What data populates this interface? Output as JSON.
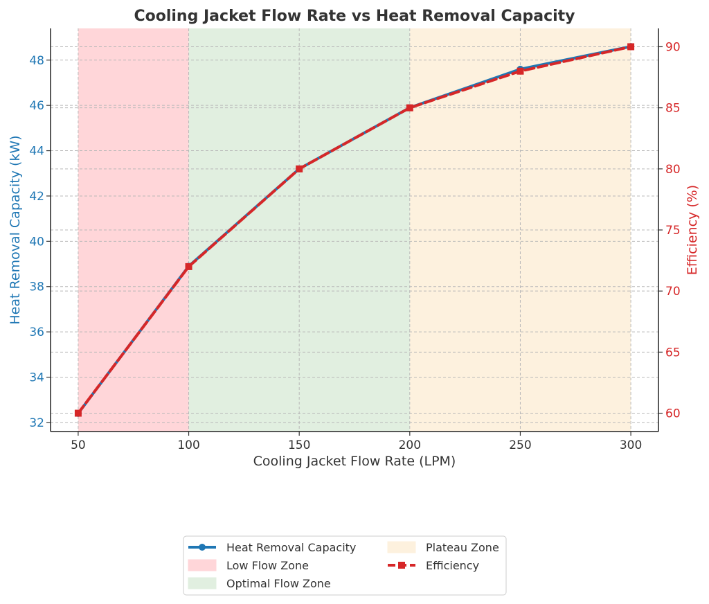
{
  "chart_data": {
    "type": "line",
    "title": "Cooling Jacket Flow Rate vs Heat Removal Capacity",
    "xlabel": "Cooling Jacket Flow Rate (LPM)",
    "ylabel_left": "Heat Removal Capacity (kW)",
    "ylabel_right": "Efficiency (%)",
    "x": [
      50,
      100,
      150,
      200,
      250,
      300
    ],
    "x_ticks": [
      "50",
      "100",
      "150",
      "200",
      "250",
      "300"
    ],
    "xlim": [
      37.5,
      312.5
    ],
    "ylim_left": [
      31.6,
      49.4
    ],
    "ylim_right": [
      58.5,
      91.5
    ],
    "y_ticks_left": [
      "32",
      "34",
      "36",
      "38",
      "40",
      "42",
      "44",
      "46",
      "48"
    ],
    "y_ticks_right": [
      "60",
      "65",
      "70",
      "75",
      "80",
      "85",
      "90"
    ],
    "grid": true,
    "legend_position": "bottom-center",
    "series": [
      {
        "name": "Heat Removal Capacity",
        "axis": "left",
        "values": [
          32.4,
          38.9,
          43.2,
          45.9,
          47.6,
          48.6
        ],
        "color": "#1f77b4",
        "marker": "circle",
        "linestyle": "solid"
      },
      {
        "name": "Efficiency",
        "axis": "right",
        "values": [
          60,
          72,
          80,
          85,
          88,
          90
        ],
        "color": "#d62728",
        "marker": "square",
        "linestyle": "dashed"
      }
    ],
    "zones": [
      {
        "name": "Low Flow Zone",
        "x_range": [
          50,
          100
        ],
        "color": "#ffd6d9"
      },
      {
        "name": "Optimal Flow Zone",
        "x_range": [
          100,
          200
        ],
        "color": "#e1efe0"
      },
      {
        "name": "Plateau Zone",
        "x_range": [
          200,
          300
        ],
        "color": "#fdf1de"
      }
    ],
    "colors": {
      "left_axis": "#1f77b4",
      "right_axis": "#d62728",
      "text": "#333333"
    }
  }
}
